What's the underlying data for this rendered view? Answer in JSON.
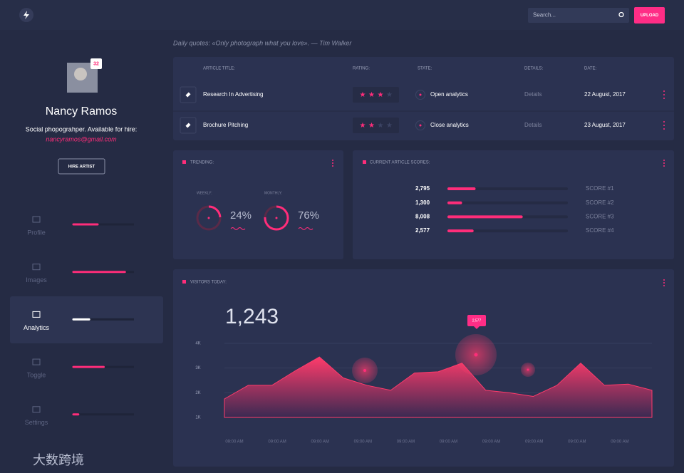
{
  "header": {
    "search_placeholder": "Search...",
    "upload_button": "UPLOAD"
  },
  "quote": "Daily quotes: «Only photograph what you love». — Tim Walker",
  "profile": {
    "name": "Nancy Ramos",
    "badge": "32",
    "bio": "Social phopograhper. Available for hire:",
    "email": "nancyramos@gmail.com",
    "button": "HIRE ARTIST"
  },
  "nav": [
    {
      "label": "Profile",
      "level": 40
    },
    {
      "label": "Images",
      "level": 85
    },
    {
      "label": "Analytics",
      "level": 26,
      "active": true
    },
    {
      "label": "Toggle",
      "level": 50
    },
    {
      "label": "Settings",
      "level": 8
    }
  ],
  "table": {
    "headers": [
      "ARTICLE TITLE:",
      "RATING:",
      "STATE:",
      "DETAILS:",
      "DATE:"
    ],
    "rating_max": 4,
    "rows": [
      {
        "title": "Research In Advertising",
        "rating": 3,
        "state": "Open analytics",
        "details": "Details",
        "date": "22 August, 2017"
      },
      {
        "title": "Brochure Pitching",
        "rating": 2,
        "state": "Close analytics",
        "details": "Details",
        "date": "23 August, 2017"
      }
    ]
  },
  "trending": {
    "title": "TRENDING:",
    "items": [
      {
        "label": "WEEKLY:",
        "value": 24,
        "value_label": "24%"
      },
      {
        "label": "MONTHLY:",
        "value": 76,
        "value_label": "76%"
      }
    ]
  },
  "scores": {
    "title": "CURRENT ARTICLE SCORES:",
    "xlim": [
      0,
      13000
    ],
    "items": [
      {
        "value": 2795,
        "value_label": "2,795",
        "name": "SCORE #1"
      },
      {
        "value": 1300,
        "value_label": "1,300",
        "name": "SCORE #2"
      },
      {
        "value": 8008,
        "value_label": "8,008",
        "name": "SCORE #3"
      },
      {
        "value": 2577,
        "value_label": "2,577",
        "name": "SCORE #4"
      }
    ]
  },
  "visitors": {
    "title": "VISITORS TODAY:",
    "total": "1,243",
    "tooltip": "2,577",
    "chart_data": {
      "type": "area",
      "color": "#ff3b6b",
      "ylim": [
        1000,
        4000
      ],
      "yticks": [
        {
          "value": 1000,
          "label": "1K"
        },
        {
          "value": 2000,
          "label": "2K"
        },
        {
          "value": 3000,
          "label": "3K"
        },
        {
          "value": 4000,
          "label": "4K"
        }
      ],
      "xlabels": [
        "09:00 AM",
        "09:00 AM",
        "09:00 AM",
        "09:00 AM",
        "09:00 AM",
        "09:00 AM",
        "09:00 AM",
        "09:00 AM",
        "09:00 AM",
        "09:00 AM"
      ],
      "values": [
        1750,
        2300,
        2300,
        2900,
        3450,
        2600,
        2300,
        2100,
        2800,
        2850,
        3200,
        2100,
        2000,
        1850,
        2300,
        3200,
        2300,
        2350,
        2100
      ]
    }
  },
  "watermark": "大数跨境"
}
